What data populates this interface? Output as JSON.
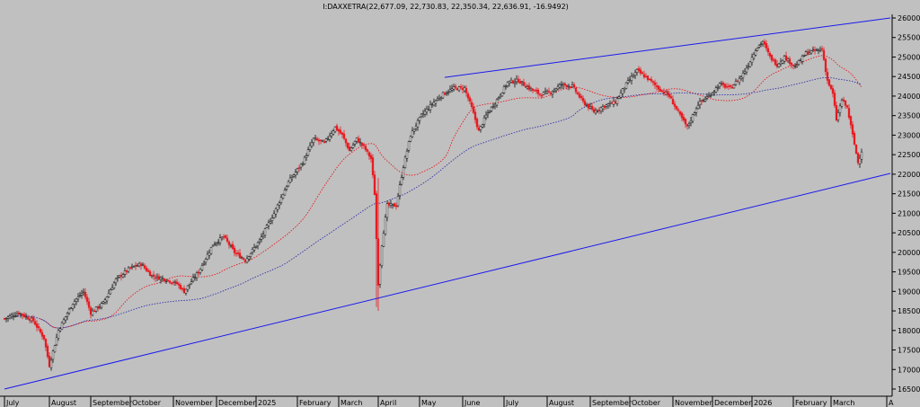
{
  "chart_data": {
    "type": "candlestick",
    "title": "I:DAXXETRA(22,677.09, 22,730.83, 22,350.34, 22,636.91, -16.9492)",
    "xlabel": "",
    "ylabel": "",
    "grid": false,
    "ylim": [
      16400,
      26000
    ],
    "y_ticks": [
      16500,
      17000,
      17500,
      18000,
      18500,
      19000,
      19500,
      20000,
      20500,
      21000,
      21500,
      22000,
      22500,
      23000,
      23500,
      24000,
      24500,
      25000,
      25500,
      26000
    ],
    "x_month_labels": [
      {
        "label": "July",
        "bar": 0
      },
      {
        "label": "August",
        "bar": 25
      },
      {
        "label": "September",
        "bar": 48
      },
      {
        "label": "October",
        "bar": 70
      },
      {
        "label": "November",
        "bar": 94
      },
      {
        "label": "December",
        "bar": 118
      },
      {
        "label": "2025",
        "bar": 140
      },
      {
        "label": "February",
        "bar": 163
      },
      {
        "label": "March",
        "bar": 186
      },
      {
        "label": "April",
        "bar": 208
      },
      {
        "label": "May",
        "bar": 231
      },
      {
        "label": "June",
        "bar": 255
      },
      {
        "label": "July",
        "bar": 278
      },
      {
        "label": "August",
        "bar": 302
      },
      {
        "label": "September",
        "bar": 326
      },
      {
        "label": "October",
        "bar": 348
      },
      {
        "label": "November",
        "bar": 372
      },
      {
        "label": "December",
        "bar": 394
      },
      {
        "label": "2026",
        "bar": 416
      },
      {
        "label": "February",
        "bar": 439
      },
      {
        "label": "March",
        "bar": 460
      },
      {
        "label": "A",
        "bar": 491
      }
    ],
    "price_anchors": [
      [
        0,
        18300
      ],
      [
        8,
        18450
      ],
      [
        16,
        18250
      ],
      [
        22,
        17800
      ],
      [
        25,
        17100
      ],
      [
        30,
        18000
      ],
      [
        38,
        18700
      ],
      [
        44,
        19000
      ],
      [
        48,
        18450
      ],
      [
        55,
        18700
      ],
      [
        62,
        19300
      ],
      [
        70,
        19600
      ],
      [
        76,
        19700
      ],
      [
        82,
        19400
      ],
      [
        90,
        19300
      ],
      [
        96,
        19200
      ],
      [
        100,
        19000
      ],
      [
        108,
        19500
      ],
      [
        116,
        20200
      ],
      [
        122,
        20400
      ],
      [
        128,
        20000
      ],
      [
        134,
        19800
      ],
      [
        142,
        20300
      ],
      [
        150,
        21000
      ],
      [
        158,
        21800
      ],
      [
        166,
        22300
      ],
      [
        172,
        22900
      ],
      [
        178,
        22800
      ],
      [
        184,
        23200
      ],
      [
        188,
        23000
      ],
      [
        192,
        22600
      ],
      [
        196,
        22900
      ],
      [
        200,
        22700
      ],
      [
        204,
        22400
      ],
      [
        206,
        21500
      ],
      [
        208,
        19200
      ],
      [
        210,
        20200
      ],
      [
        213,
        21200
      ],
      [
        218,
        21200
      ],
      [
        222,
        22200
      ],
      [
        226,
        23000
      ],
      [
        232,
        23500
      ],
      [
        238,
        23800
      ],
      [
        244,
        24050
      ],
      [
        250,
        24200
      ],
      [
        256,
        24200
      ],
      [
        260,
        23700
      ],
      [
        264,
        23100
      ],
      [
        268,
        23500
      ],
      [
        274,
        23900
      ],
      [
        280,
        24350
      ],
      [
        286,
        24400
      ],
      [
        292,
        24200
      ],
      [
        298,
        24050
      ],
      [
        304,
        24100
      ],
      [
        310,
        24300
      ],
      [
        316,
        24250
      ],
      [
        322,
        23850
      ],
      [
        328,
        23600
      ],
      [
        334,
        23750
      ],
      [
        340,
        23850
      ],
      [
        346,
        24300
      ],
      [
        352,
        24650
      ],
      [
        358,
        24450
      ],
      [
        364,
        24200
      ],
      [
        370,
        24000
      ],
      [
        376,
        23500
      ],
      [
        380,
        23200
      ],
      [
        386,
        23800
      ],
      [
        392,
        24000
      ],
      [
        398,
        24300
      ],
      [
        404,
        24200
      ],
      [
        410,
        24500
      ],
      [
        414,
        24800
      ],
      [
        418,
        25200
      ],
      [
        422,
        25400
      ],
      [
        426,
        25000
      ],
      [
        430,
        24800
      ],
      [
        434,
        25000
      ],
      [
        440,
        24750
      ],
      [
        446,
        25100
      ],
      [
        450,
        25150
      ],
      [
        455,
        25200
      ],
      [
        458,
        24400
      ],
      [
        461,
        24050
      ],
      [
        463,
        23400
      ],
      [
        466,
        23900
      ],
      [
        469,
        23700
      ],
      [
        472,
        23000
      ],
      [
        475,
        22300
      ],
      [
        477,
        22600
      ]
    ],
    "indicators": [
      {
        "kind": "moving-average",
        "color": "#e8181e",
        "style": "dotted"
      },
      {
        "kind": "moving-average",
        "color": "#3333aa",
        "style": "dotted"
      }
    ],
    "trendlines": [
      {
        "from": [
          0,
          16500
        ],
        "to": [
          493,
          22020
        ],
        "color": "#1a1aee"
      },
      {
        "from": [
          245,
          24480
        ],
        "to": [
          493,
          26000
        ],
        "color": "#1a1aee"
      }
    ],
    "colors": {
      "up": "#111111",
      "down": "#e8181e",
      "background": "#c0c0c0"
    },
    "legend": "none"
  }
}
